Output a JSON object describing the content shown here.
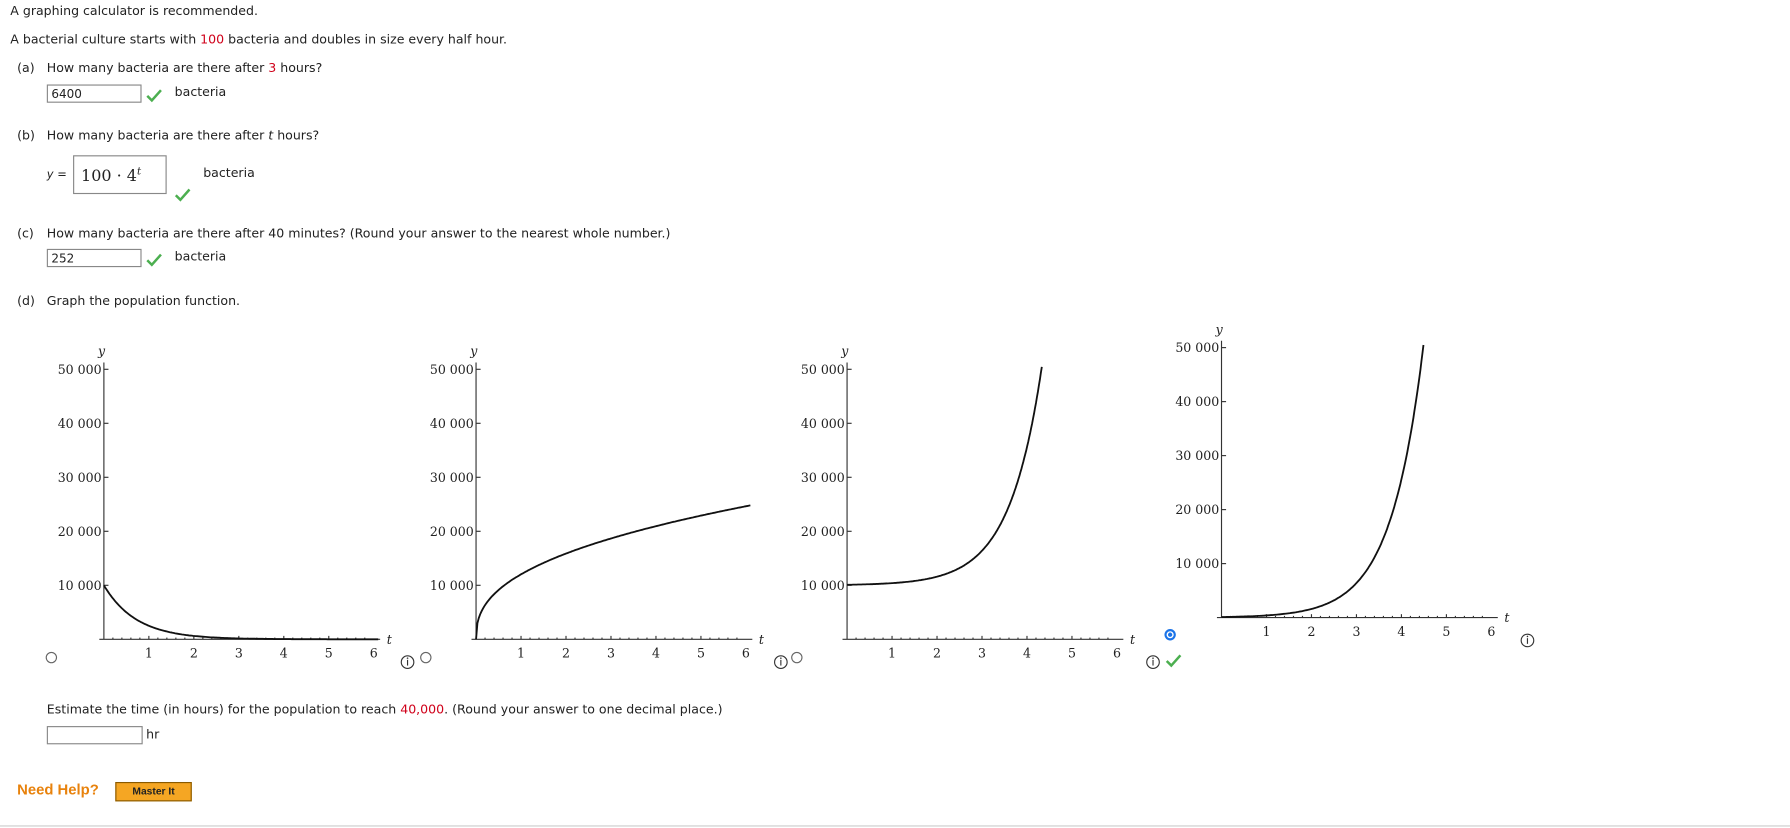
{
  "notice": "A graphing calculator is recommended.",
  "problem": {
    "text_before": "A bacterial culture starts with ",
    "initial": "100",
    "text_after": " bacteria and doubles in size every half hour."
  },
  "parts": {
    "a": {
      "label": "(a)",
      "question_before": "How many bacteria are there after ",
      "hours": "3",
      "question_after": " hours?",
      "answer": "6400",
      "unit": "bacteria"
    },
    "b": {
      "label": "(b)",
      "question_before": "How many bacteria are there after ",
      "variable": "t",
      "question_after": " hours?",
      "lhs": "y =",
      "answer_base": "100 · 4",
      "answer_exponent": "t",
      "unit": "bacteria"
    },
    "c": {
      "label": "(c)",
      "question": "How many bacteria are there after 40 minutes? (Round your answer to the nearest whole number.)",
      "answer": "252",
      "unit": "bacteria"
    },
    "d": {
      "label": "(d)",
      "question": "Graph the population function.",
      "graphs": [
        {
          "y_label": "y",
          "x_label": "t",
          "yticks": [
            "50 000",
            "40 000",
            "30 000",
            "20 000",
            "10 000"
          ],
          "xticks": [
            "1",
            "2",
            "3",
            "4",
            "5",
            "6"
          ],
          "selected": false
        },
        {
          "y_label": "y",
          "x_label": "t",
          "yticks": [
            "50 000",
            "40 000",
            "30 000",
            "20 000",
            "10 000"
          ],
          "xticks": [
            "1",
            "2",
            "3",
            "4",
            "5",
            "6"
          ],
          "selected": false
        },
        {
          "y_label": "y",
          "x_label": "t",
          "yticks": [
            "50 000",
            "40 000",
            "30 000",
            "20 000",
            "10 000"
          ],
          "xticks": [
            "1",
            "2",
            "3",
            "4",
            "5",
            "6"
          ],
          "selected": false
        },
        {
          "y_label": "y",
          "x_label": "t",
          "yticks": [
            "50 000",
            "40 000",
            "30 000",
            "20 000",
            "10 000"
          ],
          "xticks": [
            "1",
            "2",
            "3",
            "4",
            "5",
            "6"
          ],
          "selected": true
        }
      ],
      "estimate": {
        "before": "Estimate the time (in hours) for the population to reach ",
        "target": "40,000",
        "after": ". (Round your answer to one decimal place.)",
        "unit": "hr"
      }
    }
  },
  "help": {
    "label": "Need Help?",
    "button": "Master It"
  }
}
